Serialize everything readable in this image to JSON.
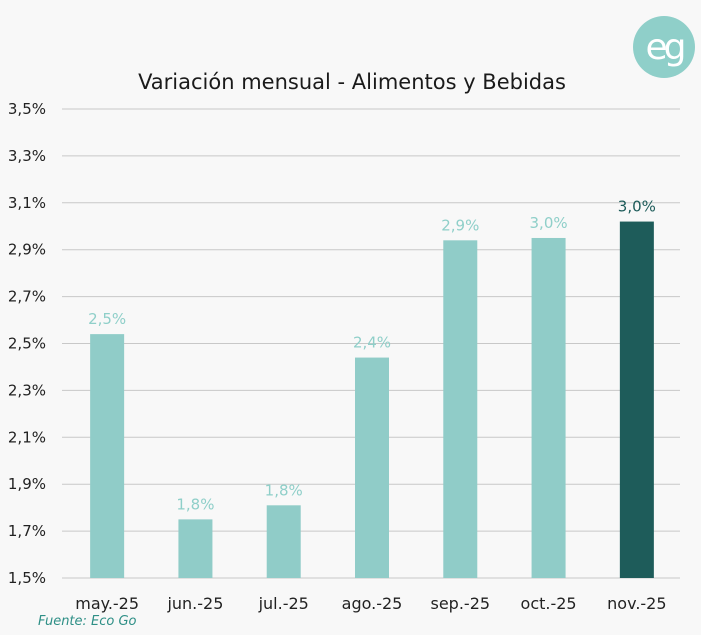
{
  "logo": {
    "text": "eg",
    "color": "#8fcfc9"
  },
  "source": "Fuente: Eco Go",
  "colors": {
    "bar": "#90ccc8",
    "highlight": "#1e5c5a",
    "label": "#8fcfc9",
    "highlight_label": "#1e5c5a"
  },
  "chart_data": {
    "type": "bar",
    "title": "Variación mensual - Alimentos y Bebidas",
    "xlabel": "",
    "ylabel": "",
    "categories": [
      "may.-25",
      "jun.-25",
      "jul.-25",
      "ago.-25",
      "sep.-25",
      "oct.-25",
      "nov.-25"
    ],
    "values": [
      2.54,
      1.75,
      1.81,
      2.44,
      2.94,
      2.95,
      3.02
    ],
    "data_labels": [
      "2,5%",
      "1,8%",
      "1,8%",
      "2,4%",
      "2,9%",
      "3,0%",
      "3,0%"
    ],
    "highlight_index": 6,
    "ylim": [
      1.5,
      3.5
    ],
    "yticks": [
      1.5,
      1.7,
      1.9,
      2.1,
      2.3,
      2.5,
      2.7,
      2.9,
      3.1,
      3.3,
      3.5
    ],
    "ytick_labels": [
      "1,5%",
      "1,7%",
      "1,9%",
      "2,1%",
      "2,3%",
      "2,5%",
      "2,7%",
      "2,9%",
      "3,1%",
      "3,3%",
      "3,5%"
    ],
    "grid": true,
    "legend": "none"
  }
}
